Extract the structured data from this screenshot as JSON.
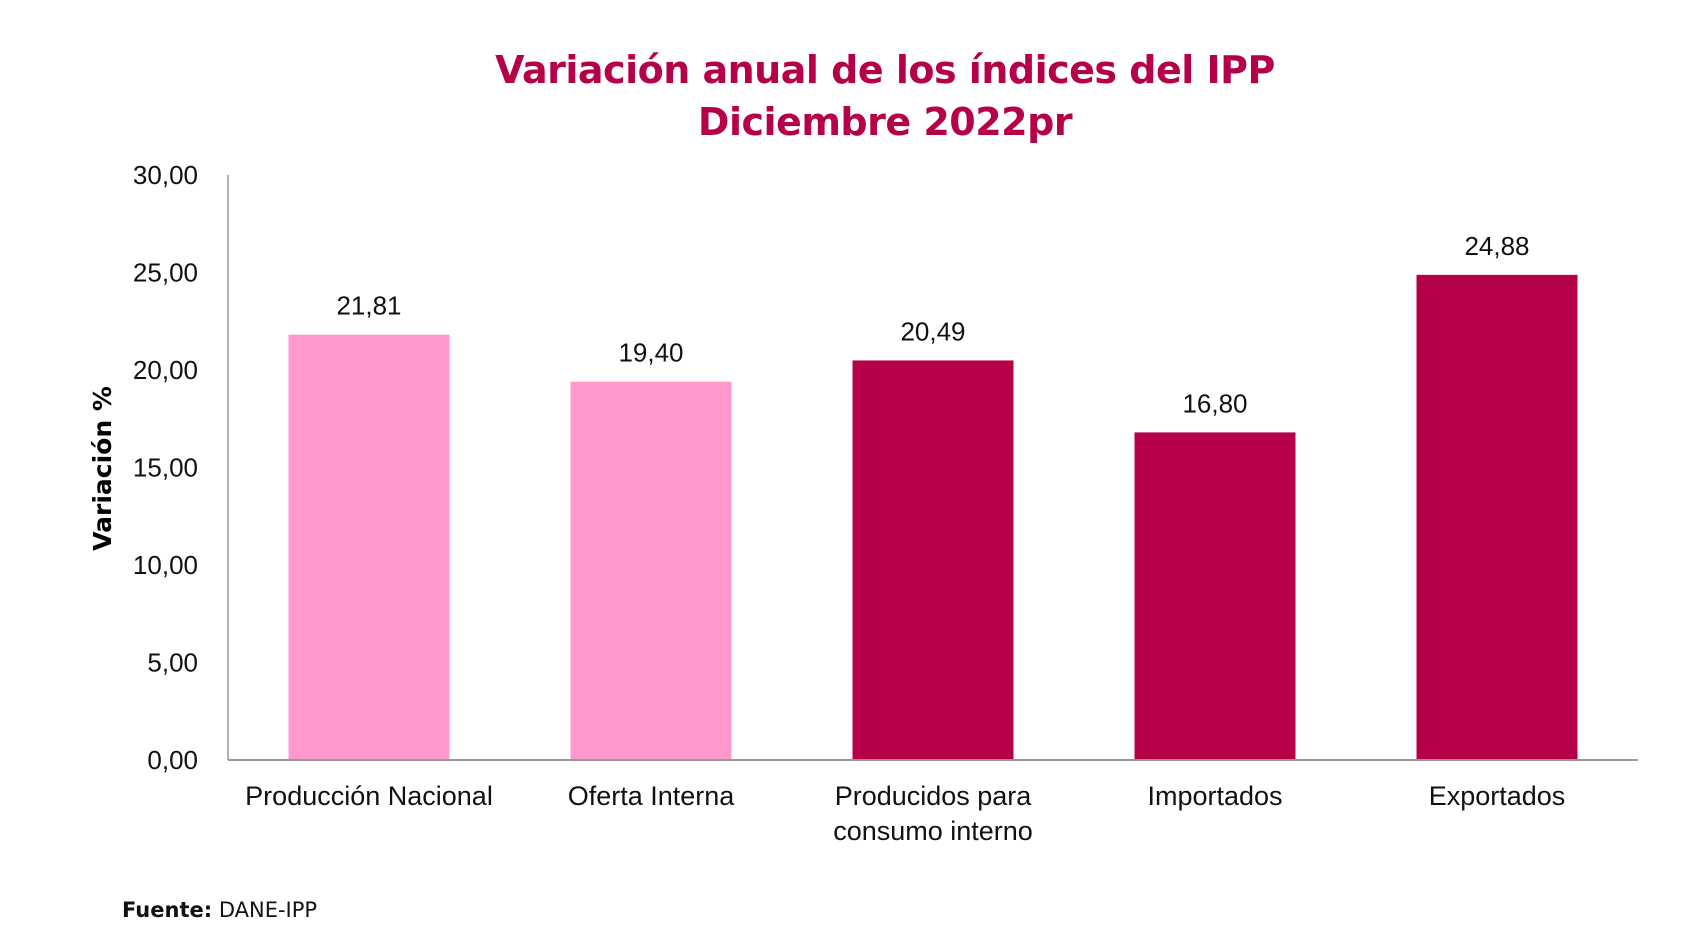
{
  "chart_data": {
    "type": "bar",
    "title": "Variación anual de los índices del IPP",
    "subtitle": "Diciembre 2022pr",
    "xlabel": "",
    "ylabel": "Variación %",
    "ylim": [
      0,
      30
    ],
    "yticks": [
      "0,00",
      "5,00",
      "10,00",
      "15,00",
      "20,00",
      "25,00",
      "30,00"
    ],
    "ytick_values": [
      0,
      5,
      10,
      15,
      20,
      25,
      30
    ],
    "categories": [
      [
        "Producción Nacional"
      ],
      [
        "Oferta Interna"
      ],
      [
        "Producidos para",
        "consumo interno"
      ],
      [
        "Importados"
      ],
      [
        "Exportados"
      ]
    ],
    "values": [
      21.81,
      19.4,
      20.49,
      16.8,
      24.88
    ],
    "data_labels": [
      "21,81",
      "19,40",
      "20,49",
      "16,80",
      "24,88"
    ],
    "bar_colors": [
      "#ff99cc",
      "#ff99cc",
      "#b5004a",
      "#b5004a",
      "#b5004a"
    ],
    "grid": false,
    "legend": "none"
  },
  "source": {
    "label": "Fuente:",
    "value": "DANE-IPP"
  }
}
